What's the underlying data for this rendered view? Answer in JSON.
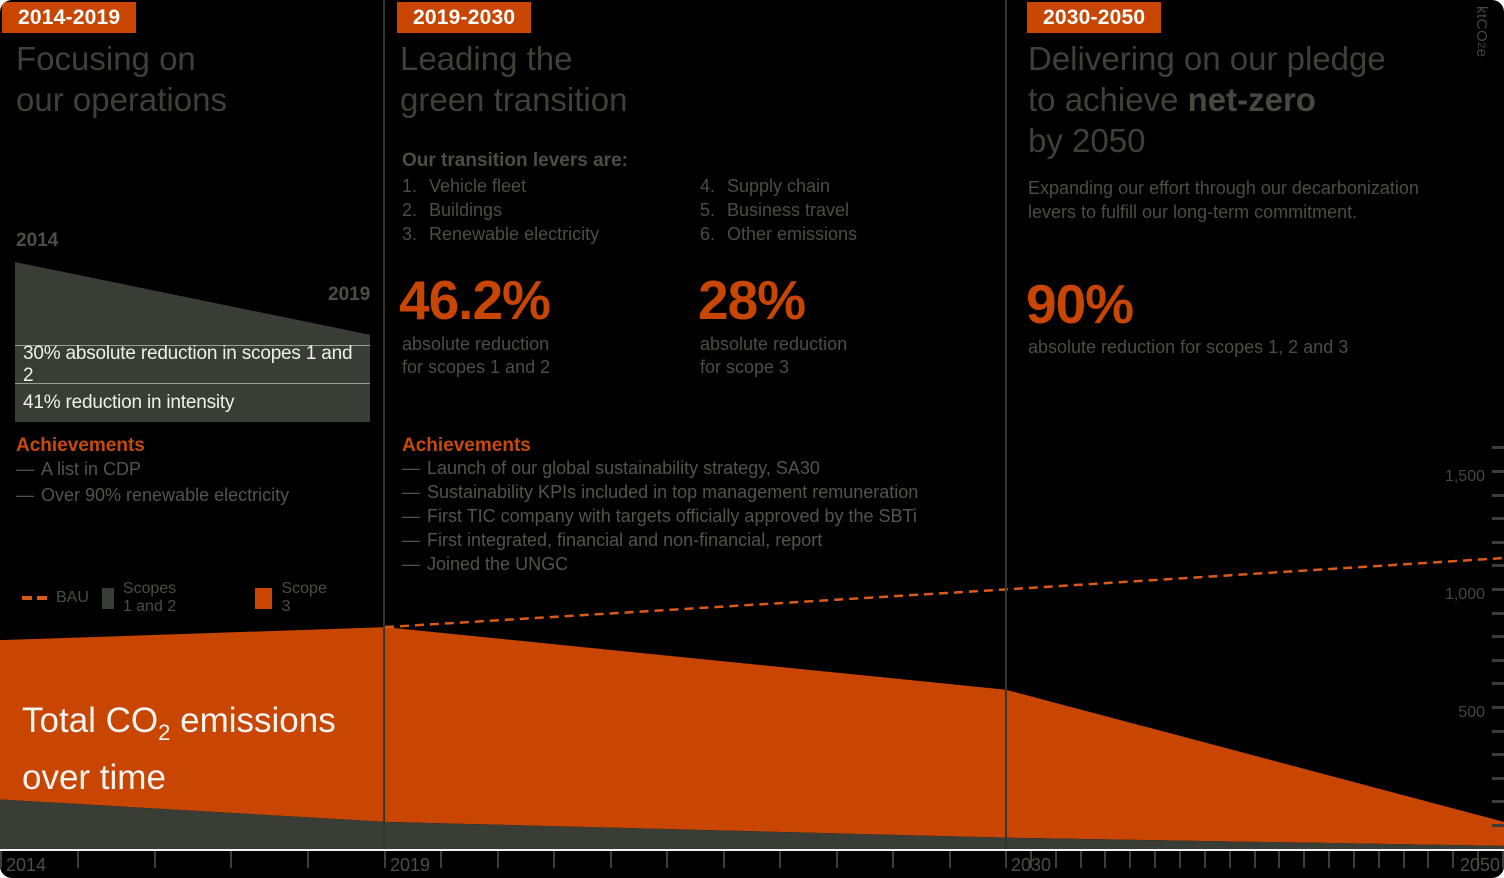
{
  "colors": {
    "background": "#000000",
    "accent_orange": "#C84502",
    "bau_line_orange": "#DA5A17",
    "panel_gray": "#3A3D35",
    "divider_gray": "#32362D",
    "title_gray": "#3D4138",
    "body_gray": "#4A4E43",
    "white": "#F2F3EF"
  },
  "periods": [
    {
      "badge": "2014-2019",
      "title_line1": "Focusing on",
      "title_line2": "our operations",
      "wedge_year_start": "2014",
      "wedge_year_end": "2019",
      "box_rows": [
        "30% absolute reduction in scopes 1 and 2",
        "41% reduction in intensity"
      ],
      "achievements_title": "Achievements",
      "achievements": [
        "A list in CDP",
        "Over 90% renewable electricity"
      ]
    },
    {
      "badge": "2019-2030",
      "title_line1": "Leading the",
      "title_line2": "green transition",
      "levers_title": "Our transition levers are:",
      "levers": [
        "Vehicle fleet",
        "Buildings",
        "Renewable electricity",
        "Supply chain",
        "Business travel",
        "Other emissions"
      ],
      "stats": [
        {
          "value": "46.2%",
          "caption_line1": "absolute reduction",
          "caption_line2": "for scopes 1 and 2"
        },
        {
          "value": "28%",
          "caption_line1": "absolute reduction",
          "caption_line2": "for scope 3"
        }
      ],
      "achievements_title": "Achievements",
      "achievements": [
        "Launch of our global sustainability strategy, SA30",
        "Sustainability KPIs included in top management remuneration",
        "First TIC company with targets officially approved by the SBTi",
        "First integrated, financial and non-financial, report",
        "Joined the UNGC"
      ]
    },
    {
      "badge": "2030-2050",
      "title_line1": "Delivering on our pledge",
      "title_line2_pre": "to achieve ",
      "title_line2_bold": "net-zero",
      "title_line3": "by 2050",
      "subtitle_line1": "Expanding our effort through our decarbonization",
      "subtitle_line2": "levers to fulfill our long-term commitment.",
      "stat": {
        "value": "90%",
        "caption": "absolute reduction for scopes 1, 2 and 3"
      }
    }
  ],
  "legend": [
    {
      "type": "dash",
      "label": "BAU"
    },
    {
      "type": "square-dark",
      "label": "Scopes 1 and 2"
    },
    {
      "type": "square-orange",
      "label": "Scope 3"
    }
  ],
  "total_label": {
    "line1_pre": "Total CO",
    "line1_sub": "2",
    "line1_post": " emissions",
    "line2": "over time"
  },
  "y_axis_unit": {
    "pre": "ktCO",
    "sub": "2",
    "post": "e"
  },
  "chart_data": {
    "type": "area",
    "title": "Total CO2 emissions over time",
    "ylabel": "ktCO2e",
    "stacked": true,
    "x": [
      2014,
      2019,
      2030,
      2050
    ],
    "x_labeled_years": [
      2014,
      2019,
      2030,
      2050
    ],
    "x_tick_every_years": 1,
    "x_scale_note": "piecewise-compressed timeline: 2014-2019, 2019-2030, 2030-2050 get equal-width panels",
    "ylim": [
      0,
      1750
    ],
    "yticks_labeled": [
      {
        "value": 500,
        "label": "500"
      },
      {
        "value": 1000,
        "label": "1,000"
      },
      {
        "value": 1500,
        "label": "1,500"
      }
    ],
    "ytick_minor_step": 100,
    "series": [
      {
        "name": "Scopes 1 and 2",
        "type": "area",
        "color": "#3A3D35",
        "values": [
          210,
          115,
          48,
          13
        ]
      },
      {
        "name": "Scope 3",
        "type": "area",
        "color": "#C84502",
        "values": [
          675,
          825,
          627,
          102
        ]
      },
      {
        "name": "BAU",
        "type": "dashed-line",
        "color": "#DA5A17",
        "values": [
          null,
          940,
          1100,
          1233
        ]
      }
    ],
    "legend_position": "left-middle"
  }
}
